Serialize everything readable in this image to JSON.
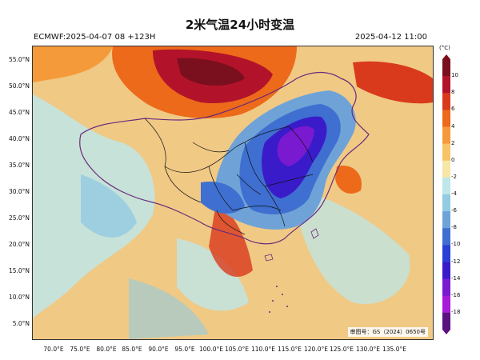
{
  "title": "2米气温24小时变温",
  "model_info": "ECMWF:2025-04-07 08 +123H",
  "valid_time": "2025-04-12 11:00",
  "approval_no": "审图号：GS（2024）0650号",
  "colorbar": {
    "unit": "(°C)",
    "ticks": [
      "10",
      "8",
      "6",
      "4",
      "2",
      "0",
      "-2",
      "-4",
      "-6",
      "-8",
      "-10",
      "-12",
      "-14",
      "-16",
      "-18"
    ],
    "colors": [
      "#7a0f1e",
      "#b3132a",
      "#d93a1c",
      "#ec6a1a",
      "#f59a3a",
      "#f7c467",
      "#f6e7a6",
      "#bfe6e8",
      "#93cbe1",
      "#6fa3d8",
      "#3f6fd0",
      "#2a3fd3",
      "#3a1bc9",
      "#7a1ad0",
      "#a81bd8",
      "#5a1280"
    ]
  },
  "lat_labels": [
    "55.0°N",
    "50.0°N",
    "45.0°N",
    "40.0°N",
    "35.0°N",
    "30.0°N",
    "25.0°N",
    "20.0°N",
    "15.0°N",
    "10.0°N",
    "5.0°N"
  ],
  "lon_labels": [
    "70.0°E",
    "75.0°E",
    "80.0°E",
    "85.0°E",
    "90.0°E",
    "95.0°E",
    "100.0°E",
    "105.0°E",
    "110.0°E",
    "115.0°E",
    "120.0°E",
    "125.0°E",
    "130.0°E",
    "135.0°E"
  ],
  "colors": {
    "warm_bg": "#f0c985",
    "cold_core": "#3a1bc9",
    "boundary": "#6a2a7a",
    "province": "#111111"
  }
}
